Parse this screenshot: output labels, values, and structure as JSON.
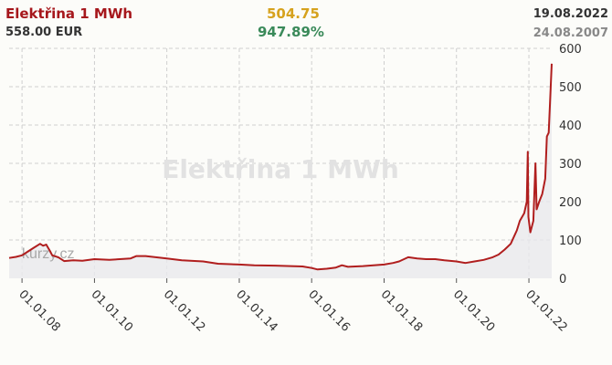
{
  "header": {
    "title": "Elektřina 1 MWh",
    "price": "558.00 EUR",
    "last": "504.75",
    "change": "947.89%",
    "date_last": "19.08.2022",
    "date_first": "24.08.2007"
  },
  "colors": {
    "title": "#a6171c",
    "price": "#333333",
    "last": "#d6a21e",
    "change": "#3a8a5a",
    "date_last": "#333333",
    "date_first": "#888888",
    "line": "#b01e1e",
    "area": "#e8e8ec"
  },
  "watermark": "Elektřina 1 MWh",
  "logo": "kurzy.cz",
  "chart_data": {
    "type": "area",
    "title": "Elektřina 1 MWh",
    "xlabel": "",
    "ylabel": "",
    "ylim": [
      0,
      600
    ],
    "xlim": [
      "2007-08-24",
      "2022-08-19"
    ],
    "grid": true,
    "y_ticks": [
      0,
      100,
      200,
      300,
      400,
      500,
      600
    ],
    "x_ticks": [
      {
        "date": "2008-01-01",
        "label": "01.01.08"
      },
      {
        "date": "2010-01-01",
        "label": "01.01.10"
      },
      {
        "date": "2012-01-01",
        "label": "01.01.12"
      },
      {
        "date": "2014-01-01",
        "label": "01.01.14"
      },
      {
        "date": "2016-01-01",
        "label": "01.01.16"
      },
      {
        "date": "2018-01-01",
        "label": "01.01.18"
      },
      {
        "date": "2020-01-01",
        "label": "01.01.20"
      },
      {
        "date": "2022-01-01",
        "label": "01.01.22"
      }
    ],
    "series": [
      {
        "values": [
          [
            "2007-08-24",
            53
          ],
          [
            "2007-11-01",
            56
          ],
          [
            "2008-01-01",
            60
          ],
          [
            "2008-03-01",
            70
          ],
          [
            "2008-05-01",
            80
          ],
          [
            "2008-07-01",
            90
          ],
          [
            "2008-08-01",
            85
          ],
          [
            "2008-09-01",
            88
          ],
          [
            "2008-10-01",
            75
          ],
          [
            "2008-11-01",
            60
          ],
          [
            "2009-01-01",
            55
          ],
          [
            "2009-03-01",
            45
          ],
          [
            "2009-06-01",
            47
          ],
          [
            "2009-09-01",
            46
          ],
          [
            "2010-01-01",
            50
          ],
          [
            "2010-06-01",
            48
          ],
          [
            "2011-01-01",
            52
          ],
          [
            "2011-03-01",
            58
          ],
          [
            "2011-06-01",
            58
          ],
          [
            "2012-01-01",
            52
          ],
          [
            "2012-06-01",
            47
          ],
          [
            "2013-01-01",
            44
          ],
          [
            "2013-06-01",
            38
          ],
          [
            "2014-01-01",
            36
          ],
          [
            "2014-06-01",
            34
          ],
          [
            "2015-01-01",
            33
          ],
          [
            "2015-06-01",
            32
          ],
          [
            "2015-10-01",
            31
          ],
          [
            "2016-01-01",
            27
          ],
          [
            "2016-03-01",
            23
          ],
          [
            "2016-06-01",
            25
          ],
          [
            "2016-09-01",
            28
          ],
          [
            "2016-11-01",
            34
          ],
          [
            "2017-01-01",
            30
          ],
          [
            "2017-06-01",
            32
          ],
          [
            "2018-01-01",
            36
          ],
          [
            "2018-04-01",
            40
          ],
          [
            "2018-06-01",
            44
          ],
          [
            "2018-09-01",
            55
          ],
          [
            "2018-12-01",
            52
          ],
          [
            "2019-03-01",
            50
          ],
          [
            "2019-06-01",
            50
          ],
          [
            "2019-09-01",
            47
          ],
          [
            "2020-01-01",
            44
          ],
          [
            "2020-04-01",
            40
          ],
          [
            "2020-07-01",
            44
          ],
          [
            "2020-10-01",
            48
          ],
          [
            "2021-01-01",
            55
          ],
          [
            "2021-03-01",
            62
          ],
          [
            "2021-05-01",
            75
          ],
          [
            "2021-07-01",
            90
          ],
          [
            "2021-09-01",
            125
          ],
          [
            "2021-10-01",
            150
          ],
          [
            "2021-11-15",
            170
          ],
          [
            "2021-12-10",
            200
          ],
          [
            "2021-12-21",
            330
          ],
          [
            "2021-12-27",
            160
          ],
          [
            "2022-01-15",
            120
          ],
          [
            "2022-02-15",
            150
          ],
          [
            "2022-03-08",
            300
          ],
          [
            "2022-03-20",
            180
          ],
          [
            "2022-04-15",
            200
          ],
          [
            "2022-05-15",
            220
          ],
          [
            "2022-06-15",
            260
          ],
          [
            "2022-07-01",
            370
          ],
          [
            "2022-07-20",
            380
          ],
          [
            "2022-08-01",
            450
          ],
          [
            "2022-08-19",
            560
          ]
        ]
      }
    ]
  }
}
